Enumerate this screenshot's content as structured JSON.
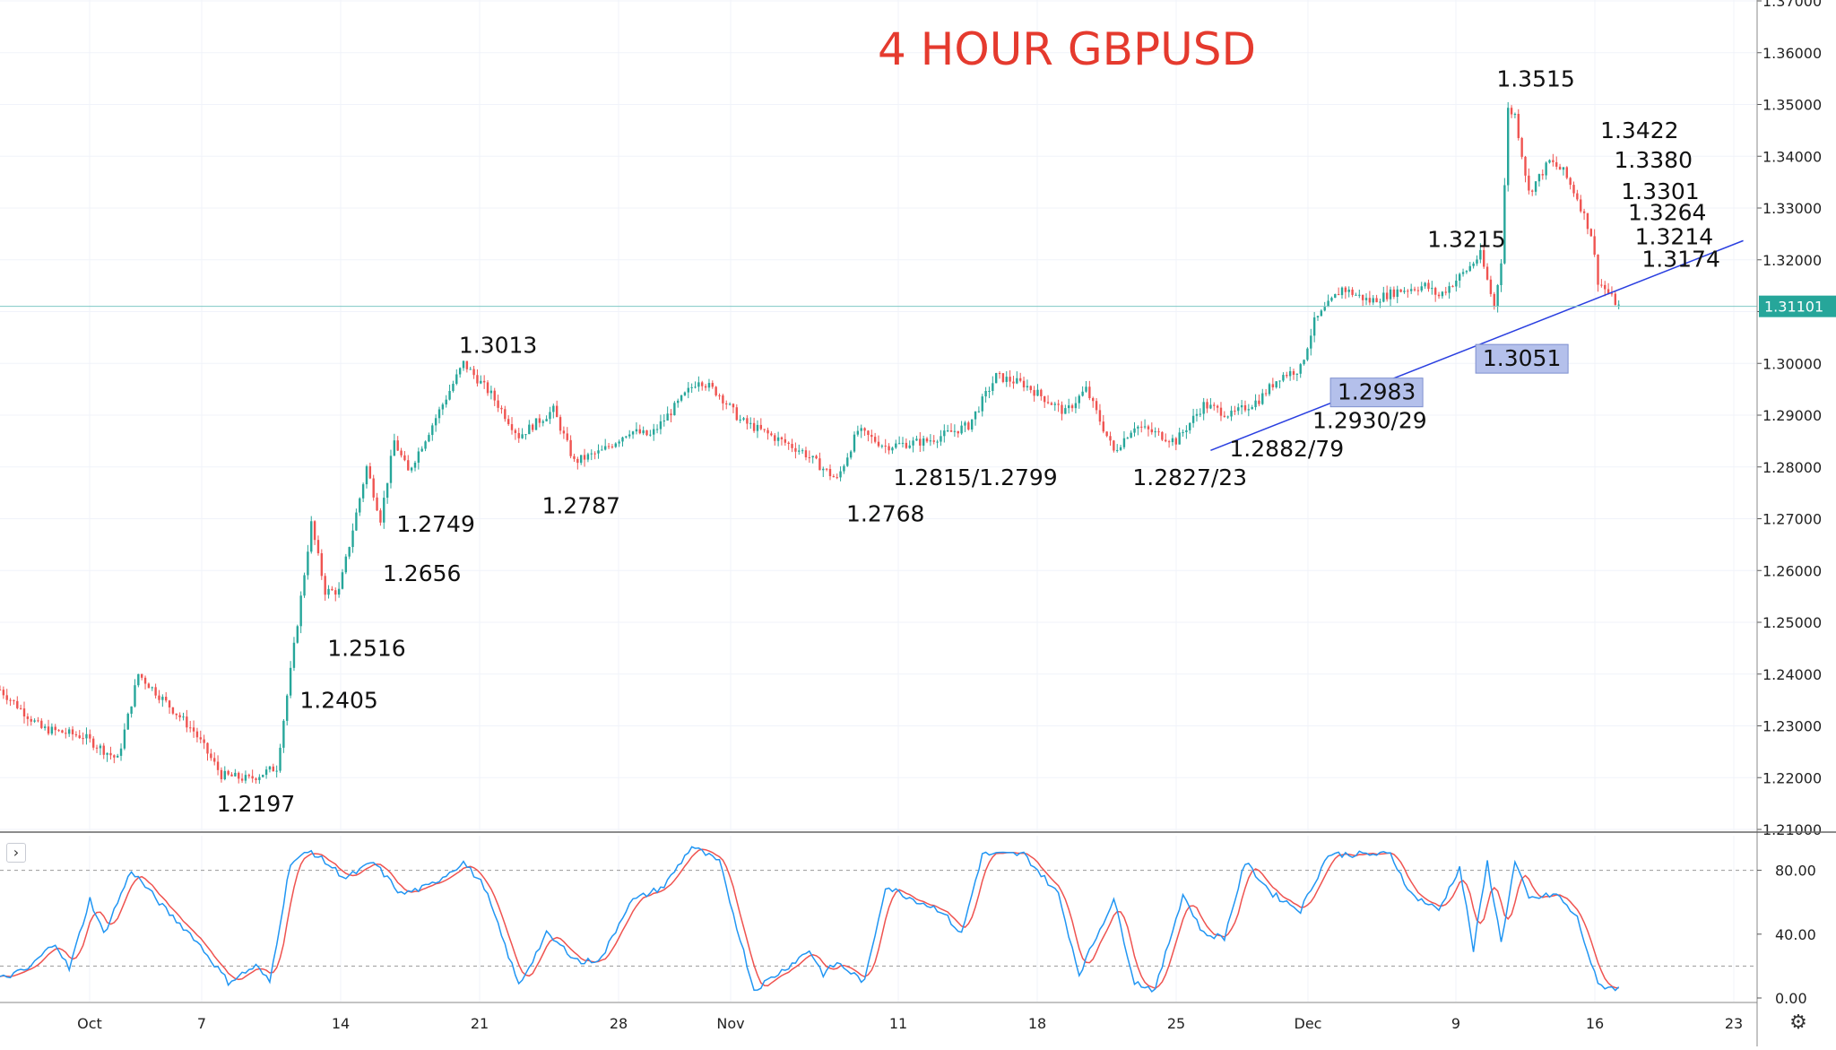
{
  "chart_data": {
    "type": "candlestick",
    "title": "4 HOUR GBPUSD",
    "title_color": "#e53a2e",
    "up_color": "#26a69a",
    "down_color": "#ef5350",
    "last_price": "1.31101",
    "price_axis": {
      "range": [
        1.21,
        1.37
      ],
      "ticks": [
        "1.21000",
        "1.22000",
        "1.23000",
        "1.24000",
        "1.25000",
        "1.26000",
        "1.27000",
        "1.28000",
        "1.29000",
        "1.30000",
        "1.31000",
        "1.32000",
        "1.33000",
        "1.34000",
        "1.35000",
        "1.36000",
        "1.37000"
      ]
    },
    "time_axis": {
      "ticks": [
        "Oct",
        "7",
        "14",
        "21",
        "28",
        "Nov",
        "11",
        "18",
        "25",
        "Dec",
        "9",
        "16",
        "23"
      ]
    },
    "price_path": [
      {
        "t": 0,
        "p": 1.237
      },
      {
        "t": 3,
        "p": 1.2295
      },
      {
        "t": 6,
        "p": 1.228
      },
      {
        "t": 8.5,
        "p": 1.2235
      },
      {
        "t": 10,
        "p": 1.24
      },
      {
        "t": 14,
        "p": 1.229
      },
      {
        "t": 16,
        "p": 1.2205
      },
      {
        "t": 18,
        "p": 1.2197
      },
      {
        "t": 20,
        "p": 1.222
      },
      {
        "t": 21,
        "p": 1.2405
      },
      {
        "t": 22.5,
        "p": 1.269
      },
      {
        "t": 23.5,
        "p": 1.256
      },
      {
        "t": 24.5,
        "p": 1.256
      },
      {
        "t": 26.5,
        "p": 1.28
      },
      {
        "t": 27.5,
        "p": 1.27
      },
      {
        "t": 28.5,
        "p": 1.285
      },
      {
        "t": 29.5,
        "p": 1.279
      },
      {
        "t": 33.5,
        "p": 1.3
      },
      {
        "t": 35.5,
        "p": 1.294
      },
      {
        "t": 37.5,
        "p": 1.286
      },
      {
        "t": 40,
        "p": 1.291
      },
      {
        "t": 41.5,
        "p": 1.281
      },
      {
        "t": 43.5,
        "p": 1.283
      },
      {
        "t": 45.5,
        "p": 1.287
      },
      {
        "t": 47,
        "p": 1.286
      },
      {
        "t": 50.5,
        "p": 1.297
      },
      {
        "t": 52,
        "p": 1.294
      },
      {
        "t": 53.5,
        "p": 1.289
      },
      {
        "t": 58,
        "p": 1.283
      },
      {
        "t": 60.5,
        "p": 1.2775
      },
      {
        "t": 62,
        "p": 1.287
      },
      {
        "t": 64,
        "p": 1.284
      },
      {
        "t": 67,
        "p": 1.285
      },
      {
        "t": 70,
        "p": 1.288
      },
      {
        "t": 72,
        "p": 1.2975
      },
      {
        "t": 74,
        "p": 1.296
      },
      {
        "t": 77,
        "p": 1.2905
      },
      {
        "t": 78.5,
        "p": 1.295
      },
      {
        "t": 80.5,
        "p": 1.283
      },
      {
        "t": 82,
        "p": 1.288
      },
      {
        "t": 85,
        "p": 1.285
      },
      {
        "t": 87,
        "p": 1.292
      },
      {
        "t": 89,
        "p": 1.29
      },
      {
        "t": 91,
        "p": 1.293
      },
      {
        "t": 92.5,
        "p": 1.2975
      },
      {
        "t": 94,
        "p": 1.299
      },
      {
        "t": 95,
        "p": 1.308
      },
      {
        "t": 97,
        "p": 1.3145
      },
      {
        "t": 99,
        "p": 1.312
      },
      {
        "t": 101,
        "p": 1.314
      },
      {
        "t": 103,
        "p": 1.315
      },
      {
        "t": 104,
        "p": 1.313
      },
      {
        "t": 106,
        "p": 1.318
      },
      {
        "t": 107,
        "p": 1.321
      },
      {
        "t": 108,
        "p": 1.311
      },
      {
        "t": 108.5,
        "p": 1.32
      },
      {
        "t": 109,
        "p": 1.349
      },
      {
        "t": 109.5,
        "p": 1.348
      },
      {
        "t": 110.5,
        "p": 1.333
      },
      {
        "t": 112,
        "p": 1.339
      },
      {
        "t": 113,
        "p": 1.337
      },
      {
        "t": 114,
        "p": 1.332
      },
      {
        "t": 115,
        "p": 1.325
      },
      {
        "t": 115.5,
        "p": 1.316
      },
      {
        "t": 117,
        "p": 1.311
      }
    ],
    "stochastic": {
      "ticks": [
        "0.00",
        "40.00",
        "80.00"
      ],
      "levels": [
        20,
        80
      ],
      "k_color": "#2196f3",
      "d_color": "#ef5350",
      "k_points": [
        {
          "t": 0,
          "v": 12
        },
        {
          "t": 2,
          "v": 18
        },
        {
          "t": 4,
          "v": 35
        },
        {
          "t": 5,
          "v": 18
        },
        {
          "t": 6.5,
          "v": 62
        },
        {
          "t": 7.5,
          "v": 40
        },
        {
          "t": 9.5,
          "v": 80
        },
        {
          "t": 12,
          "v": 55
        },
        {
          "t": 14,
          "v": 38
        },
        {
          "t": 16.5,
          "v": 10
        },
        {
          "t": 18.5,
          "v": 20
        },
        {
          "t": 19.5,
          "v": 10
        },
        {
          "t": 21,
          "v": 85
        },
        {
          "t": 22.5,
          "v": 92
        },
        {
          "t": 25,
          "v": 75
        },
        {
          "t": 27,
          "v": 85
        },
        {
          "t": 29,
          "v": 65
        },
        {
          "t": 31,
          "v": 70
        },
        {
          "t": 33.5,
          "v": 85
        },
        {
          "t": 35,
          "v": 70
        },
        {
          "t": 37.5,
          "v": 8
        },
        {
          "t": 39.5,
          "v": 40
        },
        {
          "t": 42,
          "v": 22
        },
        {
          "t": 43.5,
          "v": 25
        },
        {
          "t": 45.5,
          "v": 60
        },
        {
          "t": 48,
          "v": 70
        },
        {
          "t": 50,
          "v": 95
        },
        {
          "t": 52,
          "v": 85
        },
        {
          "t": 54.5,
          "v": 5
        },
        {
          "t": 57,
          "v": 20
        },
        {
          "t": 58.5,
          "v": 30
        },
        {
          "t": 59.5,
          "v": 15
        },
        {
          "t": 60.5,
          "v": 22
        },
        {
          "t": 62.5,
          "v": 10
        },
        {
          "t": 64,
          "v": 70
        },
        {
          "t": 66,
          "v": 62
        },
        {
          "t": 68,
          "v": 55
        },
        {
          "t": 69.5,
          "v": 40
        },
        {
          "t": 71,
          "v": 90
        },
        {
          "t": 74,
          "v": 90
        },
        {
          "t": 76.5,
          "v": 65
        },
        {
          "t": 78,
          "v": 15
        },
        {
          "t": 80.5,
          "v": 62
        },
        {
          "t": 82,
          "v": 10
        },
        {
          "t": 83.5,
          "v": 5
        },
        {
          "t": 85.5,
          "v": 65
        },
        {
          "t": 87,
          "v": 40
        },
        {
          "t": 88.5,
          "v": 38
        },
        {
          "t": 90,
          "v": 85
        },
        {
          "t": 92,
          "v": 65
        },
        {
          "t": 94,
          "v": 55
        },
        {
          "t": 96,
          "v": 90
        },
        {
          "t": 98.5,
          "v": 90
        },
        {
          "t": 100.5,
          "v": 90
        },
        {
          "t": 102,
          "v": 65
        },
        {
          "t": 104,
          "v": 55
        },
        {
          "t": 105.5,
          "v": 82
        },
        {
          "t": 106.5,
          "v": 30
        },
        {
          "t": 107.5,
          "v": 85
        },
        {
          "t": 108.5,
          "v": 35
        },
        {
          "t": 109.5,
          "v": 85
        },
        {
          "t": 110.5,
          "v": 62
        },
        {
          "t": 112.5,
          "v": 65
        },
        {
          "t": 114,
          "v": 50
        },
        {
          "t": 115.5,
          "v": 8
        },
        {
          "t": 117,
          "v": 6
        }
      ]
    },
    "trendline": [
      {
        "t": 87.5,
        "p": 1.2832
      },
      {
        "t": 126,
        "p": 1.3237
      }
    ],
    "annotations": [
      {
        "text": "1.2197",
        "t": 18.5,
        "p": 1.2135,
        "highlight": false
      },
      {
        "text": "1.2405",
        "t": 24.5,
        "p": 1.2335,
        "highlight": false
      },
      {
        "text": "1.2516",
        "t": 26.5,
        "p": 1.2435,
        "highlight": false
      },
      {
        "text": "1.2656",
        "t": 30.5,
        "p": 1.258,
        "highlight": false
      },
      {
        "text": "1.2749",
        "t": 31.5,
        "p": 1.2675,
        "highlight": false
      },
      {
        "text": "1.3013",
        "t": 36,
        "p": 1.302,
        "highlight": false
      },
      {
        "text": "1.2787",
        "t": 42,
        "p": 1.271,
        "highlight": false
      },
      {
        "text": "1.2768",
        "t": 64,
        "p": 1.2695,
        "highlight": false
      },
      {
        "text": "1.2815/1.2799",
        "t": 70.5,
        "p": 1.2765,
        "highlight": false
      },
      {
        "text": "1.2827/23",
        "t": 86,
        "p": 1.2765,
        "highlight": false
      },
      {
        "text": "1.2882/79",
        "t": 93,
        "p": 1.282,
        "highlight": false
      },
      {
        "text": "1.2930/29",
        "t": 99,
        "p": 1.2875,
        "highlight": false
      },
      {
        "text": "1.2983",
        "t": 99.5,
        "p": 1.293,
        "highlight": true
      },
      {
        "text": "1.3051",
        "t": 110,
        "p": 1.2995,
        "highlight": true
      },
      {
        "text": "1.3215",
        "t": 106,
        "p": 1.3225,
        "highlight": false
      },
      {
        "text": "1.3515",
        "t": 111,
        "p": 1.3535,
        "highlight": false
      },
      {
        "text": "1.3422",
        "t": 118.5,
        "p": 1.3435,
        "highlight": false
      },
      {
        "text": "1.3380",
        "t": 119.5,
        "p": 1.3378,
        "highlight": false
      },
      {
        "text": "1.3301",
        "t": 120,
        "p": 1.3317,
        "highlight": false
      },
      {
        "text": "1.3264",
        "t": 120.5,
        "p": 1.3277,
        "highlight": false
      },
      {
        "text": "1.3214",
        "t": 121,
        "p": 1.323,
        "highlight": false
      },
      {
        "text": "1.3174",
        "t": 121.5,
        "p": 1.3187,
        "highlight": false
      }
    ]
  },
  "ui": {
    "collapse_glyph": "›",
    "settings_glyph": "⚙"
  }
}
